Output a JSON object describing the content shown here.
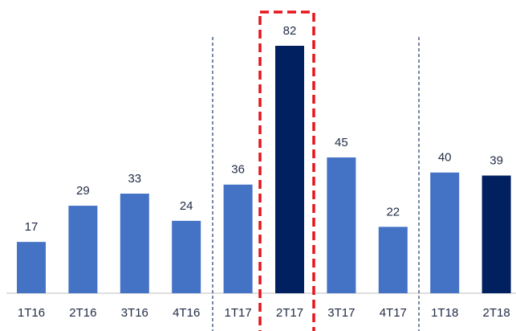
{
  "chart_data": {
    "type": "bar",
    "categories": [
      "1T16",
      "2T16",
      "3T16",
      "4T16",
      "1T17",
      "2T17",
      "3T17",
      "4T17",
      "1T18",
      "2T18"
    ],
    "values": [
      17,
      29,
      33,
      24,
      36,
      82,
      45,
      22,
      40,
      39
    ],
    "colors": [
      "#4472c4",
      "#4472c4",
      "#4472c4",
      "#4472c4",
      "#4472c4",
      "#002060",
      "#4472c4",
      "#4472c4",
      "#4472c4",
      "#002060"
    ]
  }
}
